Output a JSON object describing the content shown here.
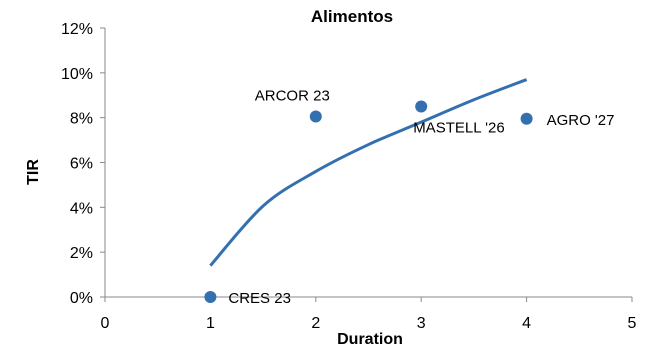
{
  "chart_data": {
    "type": "scatter",
    "title": "Alimentos",
    "xlabel": "Duration",
    "ylabel": "TIR",
    "xlim": [
      0,
      5
    ],
    "ylim": [
      0,
      12
    ],
    "x_ticks": [
      "0",
      "1",
      "2",
      "3",
      "4",
      "5"
    ],
    "y_ticks": [
      "0%",
      "2%",
      "4%",
      "6%",
      "8%",
      "10%",
      "12%"
    ],
    "grid": false,
    "legend": "none",
    "point_color": "#3470b0",
    "trendline_color": "#3470b0",
    "points": [
      {
        "label": "CRES 23",
        "x": 1.0,
        "y": 0.0
      },
      {
        "label": "ARCOR 23",
        "x": 2.0,
        "y": 8.05
      },
      {
        "label": "MASTELL '26",
        "x": 3.0,
        "y": 8.5
      },
      {
        "label": "AGRO '27",
        "x": 4.0,
        "y": 7.95
      }
    ],
    "trendline": {
      "type": "logarithmic",
      "x": [
        1.0,
        1.5,
        2.0,
        2.5,
        3.0,
        3.5,
        4.0
      ],
      "y": [
        1.4,
        4.06,
        5.6,
        6.8,
        7.8,
        8.8,
        9.7
      ]
    }
  }
}
